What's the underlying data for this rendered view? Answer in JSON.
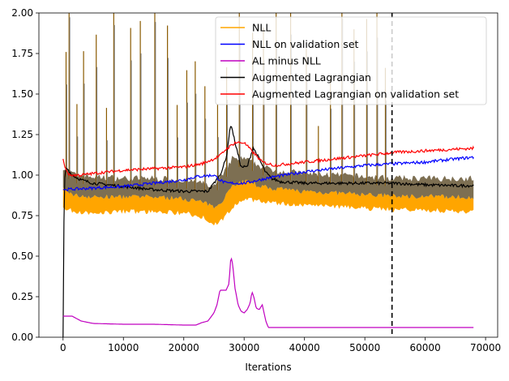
{
  "chart_data": {
    "type": "line",
    "title": "",
    "xlabel": "Iterations",
    "ylabel": "",
    "xlim": [
      -4000,
      72000
    ],
    "ylim": [
      0,
      2.0
    ],
    "x_ticks": [
      0,
      10000,
      20000,
      30000,
      40000,
      50000,
      60000,
      70000
    ],
    "y_ticks": [
      0.0,
      0.25,
      0.5,
      0.75,
      1.0,
      1.25,
      1.5,
      1.75,
      2.0
    ],
    "x_tick_labels": [
      "0",
      "10000",
      "20000",
      "30000",
      "40000",
      "50000",
      "60000",
      "70000"
    ],
    "y_tick_labels": [
      "0.00",
      "0.25",
      "0.50",
      "0.75",
      "1.00",
      "1.25",
      "1.50",
      "1.75",
      "2.00"
    ],
    "vline": {
      "x": 54500,
      "style": "dashed",
      "color": "#000000"
    },
    "grid": false,
    "legend_position": "top-right",
    "series": [
      {
        "name": "NLL",
        "color": "#ffa500",
        "style": "noisy-band",
        "x": [
          0,
          2000,
          5000,
          10000,
          15000,
          20000,
          23000,
          25000,
          26500,
          28000,
          30000,
          33000,
          35000,
          40000,
          45000,
          50000,
          55000,
          60000,
          65000,
          68000
        ],
        "low": [
          0.82,
          0.8,
          0.79,
          0.8,
          0.8,
          0.79,
          0.77,
          0.72,
          0.75,
          0.82,
          0.88,
          0.86,
          0.85,
          0.84,
          0.83,
          0.82,
          0.81,
          0.81,
          0.8,
          0.8
        ],
        "high": [
          1.0,
          0.95,
          0.94,
          0.93,
          0.93,
          0.92,
          0.9,
          0.88,
          0.95,
          1.05,
          1.05,
          1.0,
          0.98,
          0.96,
          0.95,
          0.94,
          0.93,
          0.93,
          0.93,
          0.93
        ],
        "spikes": [
          500,
          1000,
          2300,
          3400,
          5500,
          7200,
          8400,
          11200,
          12800,
          15200,
          17300,
          18900,
          20500,
          21900,
          23500,
          25600,
          27100,
          29200,
          31400,
          33200,
          35300,
          37700,
          40300,
          42300,
          44300,
          46200,
          48200,
          50300,
          52000,
          53400
        ]
      },
      {
        "name": "NLL on validation set",
        "color": "#0000ff",
        "x": [
          0,
          5000,
          10000,
          15000,
          20000,
          22000,
          25000,
          26000,
          27000,
          30000,
          35000,
          40000,
          45000,
          50000,
          55000,
          60000,
          65000,
          68000
        ],
        "y": [
          0.91,
          0.92,
          0.93,
          0.95,
          0.97,
          0.99,
          1.0,
          0.97,
          0.95,
          0.95,
          0.99,
          1.02,
          1.04,
          1.06,
          1.07,
          1.08,
          1.1,
          1.11
        ]
      },
      {
        "name": "AL minus NLL",
        "color": "#c000c0",
        "x": [
          0,
          1500,
          3000,
          5000,
          10000,
          15000,
          20000,
          22000,
          23000,
          24000,
          25000,
          25500,
          26000,
          26500,
          27000,
          27500,
          27800,
          28100,
          28500,
          29000,
          29500,
          30000,
          30500,
          31000,
          31300,
          31600,
          32000,
          32500,
          33000,
          33300,
          33600,
          34000,
          40000,
          50000,
          60000,
          68000
        ],
        "y": [
          0.13,
          0.13,
          0.1,
          0.085,
          0.08,
          0.08,
          0.075,
          0.075,
          0.09,
          0.1,
          0.15,
          0.2,
          0.29,
          0.29,
          0.29,
          0.33,
          0.5,
          0.45,
          0.3,
          0.2,
          0.16,
          0.15,
          0.17,
          0.21,
          0.28,
          0.25,
          0.18,
          0.17,
          0.2,
          0.15,
          0.1,
          0.06,
          0.06,
          0.06,
          0.06,
          0.06
        ]
      },
      {
        "name": "Augmented Lagrangian",
        "color": "#000000",
        "x": [
          0,
          200,
          400,
          700,
          1500,
          3000,
          5000,
          10000,
          15000,
          20000,
          24000,
          26000,
          27000,
          27800,
          28500,
          29500,
          30500,
          31500,
          32500,
          33500,
          34500,
          36000,
          40000,
          45000,
          50000,
          55000,
          60000,
          65000,
          68000
        ],
        "y": [
          0.0,
          0.95,
          1.03,
          1.04,
          1.0,
          0.97,
          0.95,
          0.93,
          0.91,
          0.9,
          0.9,
          1.0,
          1.1,
          1.32,
          1.2,
          1.05,
          1.05,
          1.17,
          1.1,
          1.02,
          0.98,
          0.96,
          0.95,
          0.95,
          0.95,
          0.95,
          0.94,
          0.935,
          0.935
        ]
      },
      {
        "name": "Augmented Lagrangian on validation set",
        "color": "#ff0000",
        "x": [
          0,
          300,
          1000,
          3000,
          5000,
          10000,
          15000,
          20000,
          23000,
          25000,
          26000,
          27000,
          28500,
          30000,
          33000,
          35000,
          40000,
          45000,
          50000,
          55000,
          60000,
          65000,
          68000
        ],
        "y": [
          1.1,
          1.05,
          1.0,
          1.0,
          1.01,
          1.03,
          1.04,
          1.05,
          1.07,
          1.1,
          1.12,
          1.16,
          1.2,
          1.2,
          1.08,
          1.06,
          1.08,
          1.1,
          1.12,
          1.14,
          1.15,
          1.16,
          1.165
        ]
      }
    ]
  }
}
